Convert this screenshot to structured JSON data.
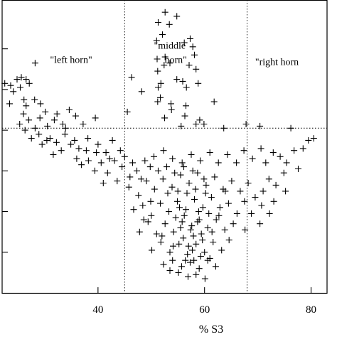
{
  "chart_data": {
    "type": "scatter",
    "marker": "+",
    "marker_color": "#000000",
    "title": "",
    "xlabel": "% S3",
    "ylabel": "",
    "xlim": [
      22,
      83
    ],
    "ylim": [
      -0.2,
      7.0
    ],
    "x_ticks": [
      40,
      60,
      80
    ],
    "x_tick_labels": [
      "40",
      "60",
      "80"
    ],
    "y_ticks": [
      0.8,
      1.8,
      2.8,
      3.8,
      4.8,
      5.8
    ],
    "y_tick_labels": [],
    "grid": false,
    "reference_lines": [
      {
        "orientation": "vertical",
        "value": 45,
        "style": "dotted"
      },
      {
        "orientation": "vertical",
        "value": 68,
        "style": "dotted"
      },
      {
        "orientation": "horizontal",
        "value": 3.85,
        "style": "dotted"
      }
    ],
    "annotations": [
      {
        "text": "\"left horn\"",
        "x": 31,
        "y": 5.45
      },
      {
        "text": "\"middle",
        "x": 50.5,
        "y": 5.8
      },
      {
        "text": "horn\"",
        "x": 52.5,
        "y": 5.45
      },
      {
        "text": "\"right horn",
        "x": 69.5,
        "y": 5.4
      }
    ],
    "series": [
      {
        "points": [
          [
            52.6,
            6.7
          ],
          [
            54.8,
            6.6
          ],
          [
            51.3,
            6.45
          ],
          [
            53.4,
            6.4
          ],
          [
            52.1,
            6.15
          ],
          [
            57.3,
            6.05
          ],
          [
            56.2,
            5.95
          ],
          [
            51.0,
            6.0
          ],
          [
            57.8,
            5.85
          ],
          [
            58.1,
            5.65
          ],
          [
            51.1,
            5.55
          ],
          [
            52.6,
            5.6
          ],
          [
            52.4,
            5.4
          ],
          [
            53.5,
            5.45
          ],
          [
            51.2,
            5.25
          ],
          [
            57.1,
            5.4
          ],
          [
            58.4,
            5.3
          ],
          [
            46.3,
            5.1
          ],
          [
            54.8,
            5.05
          ],
          [
            55.9,
            5.0
          ],
          [
            51.8,
            4.95
          ],
          [
            51.3,
            4.85
          ],
          [
            56.6,
            4.85
          ],
          [
            58.8,
            4.95
          ],
          [
            48.2,
            4.75
          ],
          [
            51.2,
            4.5
          ],
          [
            51.7,
            4.6
          ],
          [
            53.7,
            4.45
          ],
          [
            61.8,
            4.5
          ],
          [
            56.5,
            4.4
          ],
          [
            53.8,
            4.3
          ],
          [
            45.5,
            4.25
          ],
          [
            52.5,
            4.1
          ],
          [
            56.3,
            4.15
          ],
          [
            59.1,
            4.05
          ],
          [
            58.4,
            3.95
          ],
          [
            55.6,
            3.9
          ],
          [
            59.9,
            3.95
          ],
          [
            67.8,
            3.95
          ],
          [
            70.4,
            3.9
          ],
          [
            76.2,
            3.85
          ],
          [
            63.6,
            3.85
          ],
          [
            28.2,
            5.45
          ],
          [
            22.5,
            4.95
          ],
          [
            23.6,
            4.9
          ],
          [
            24.8,
            5.05
          ],
          [
            25.6,
            5.1
          ],
          [
            26.5,
            5.05
          ],
          [
            27.1,
            4.95
          ],
          [
            25.4,
            4.85
          ],
          [
            24.1,
            4.75
          ],
          [
            26.1,
            4.55
          ],
          [
            23.4,
            4.45
          ],
          [
            26.5,
            4.4
          ],
          [
            28.1,
            4.55
          ],
          [
            29.2,
            4.45
          ],
          [
            30.1,
            4.25
          ],
          [
            32.3,
            4.2
          ],
          [
            27.0,
            4.05
          ],
          [
            25.3,
            3.95
          ],
          [
            29.1,
            4.1
          ],
          [
            30.5,
            3.9
          ],
          [
            31.8,
            4.05
          ],
          [
            33.4,
            3.95
          ],
          [
            35.8,
            4.15
          ],
          [
            37.2,
            3.95
          ],
          [
            39.5,
            4.1
          ],
          [
            33.9,
            3.85
          ],
          [
            28.2,
            3.85
          ],
          [
            26.0,
            4.2
          ],
          [
            34.6,
            4.3
          ],
          [
            29.5,
            3.45
          ],
          [
            31.0,
            3.6
          ],
          [
            32.2,
            3.5
          ],
          [
            33.8,
            3.7
          ],
          [
            35.6,
            3.55
          ],
          [
            36.4,
            3.35
          ],
          [
            38.1,
            3.6
          ],
          [
            40.0,
            3.45
          ],
          [
            41.5,
            3.25
          ],
          [
            42.7,
            3.55
          ],
          [
            44.2,
            3.3
          ],
          [
            43.1,
            3.05
          ],
          [
            40.6,
            3.0
          ],
          [
            38.2,
            3.05
          ],
          [
            36.9,
            2.95
          ],
          [
            39.4,
            2.8
          ],
          [
            41.8,
            2.75
          ],
          [
            44.5,
            2.9
          ],
          [
            46.0,
            2.65
          ],
          [
            47.3,
            2.8
          ],
          [
            48.8,
            3.05
          ],
          [
            50.5,
            3.15
          ],
          [
            52.3,
            3.3
          ],
          [
            54.0,
            3.1
          ],
          [
            55.8,
            3.0
          ],
          [
            57.5,
            3.2
          ],
          [
            59.2,
            3.05
          ],
          [
            61.0,
            3.25
          ],
          [
            62.6,
            3.0
          ],
          [
            64.3,
            3.2
          ],
          [
            66.0,
            3.0
          ],
          [
            67.4,
            3.3
          ],
          [
            69.0,
            3.1
          ],
          [
            70.6,
            3.35
          ],
          [
            71.5,
            3.0
          ],
          [
            72.9,
            3.25
          ],
          [
            74.2,
            3.15
          ],
          [
            75.4,
            3.0
          ],
          [
            76.8,
            3.3
          ],
          [
            78.5,
            3.35
          ],
          [
            79.5,
            3.55
          ],
          [
            80.5,
            3.6
          ],
          [
            77.6,
            2.85
          ],
          [
            74.9,
            2.75
          ],
          [
            72.1,
            2.6
          ],
          [
            73.4,
            2.45
          ],
          [
            75.2,
            2.3
          ],
          [
            71.0,
            2.3
          ],
          [
            73.0,
            2.05
          ],
          [
            70.7,
            1.95
          ],
          [
            69.5,
            2.15
          ],
          [
            72.2,
            1.75
          ],
          [
            70.4,
            1.5
          ],
          [
            68.8,
            1.75
          ],
          [
            67.6,
            1.35
          ],
          [
            45.8,
            2.4
          ],
          [
            47.6,
            2.2
          ],
          [
            49.1,
            2.55
          ],
          [
            50.6,
            2.35
          ],
          [
            52.2,
            2.6
          ],
          [
            53.9,
            2.4
          ],
          [
            55.5,
            2.7
          ],
          [
            57.1,
            2.5
          ],
          [
            58.7,
            2.75
          ],
          [
            60.3,
            2.45
          ],
          [
            61.9,
            2.65
          ],
          [
            63.5,
            2.35
          ],
          [
            65.1,
            2.55
          ],
          [
            66.7,
            2.3
          ],
          [
            68.2,
            2.5
          ],
          [
            46.7,
            1.85
          ],
          [
            48.4,
            1.95
          ],
          [
            50.0,
            1.7
          ],
          [
            51.7,
            2.0
          ],
          [
            53.3,
            1.8
          ],
          [
            54.9,
            2.05
          ],
          [
            56.5,
            1.85
          ],
          [
            58.1,
            2.1
          ],
          [
            59.7,
            1.9
          ],
          [
            61.3,
            2.15
          ],
          [
            62.9,
            1.9
          ],
          [
            64.5,
            2.0
          ],
          [
            66.1,
            1.75
          ],
          [
            67.5,
            2.05
          ],
          [
            47.8,
            1.3
          ],
          [
            49.4,
            1.55
          ],
          [
            51.0,
            1.25
          ],
          [
            52.6,
            1.5
          ],
          [
            54.2,
            1.3
          ],
          [
            55.8,
            1.55
          ],
          [
            57.4,
            1.35
          ],
          [
            59.0,
            1.6
          ],
          [
            60.6,
            1.4
          ],
          [
            62.2,
            1.6
          ],
          [
            63.8,
            1.35
          ],
          [
            65.4,
            1.5
          ],
          [
            50.1,
            0.85
          ],
          [
            51.8,
            1.05
          ],
          [
            53.5,
            0.8
          ],
          [
            55.2,
            1.0
          ],
          [
            56.8,
            0.75
          ],
          [
            58.4,
            1.0
          ],
          [
            60.0,
            0.8
          ],
          [
            61.6,
            1.05
          ],
          [
            63.2,
            0.85
          ],
          [
            64.6,
            1.1
          ],
          [
            52.3,
            0.5
          ],
          [
            54.0,
            0.6
          ],
          [
            55.7,
            0.45
          ],
          [
            57.3,
            0.55
          ],
          [
            59.0,
            0.4
          ],
          [
            60.6,
            0.6
          ],
          [
            62.1,
            0.45
          ],
          [
            56.9,
            0.2
          ],
          [
            58.4,
            0.25
          ],
          [
            55.1,
            0.3
          ],
          [
            60.1,
            0.15
          ],
          [
            53.5,
            0.35
          ],
          [
            56.2,
            1.7
          ],
          [
            57.6,
            1.45
          ],
          [
            58.9,
            1.8
          ],
          [
            56.0,
            1.15
          ],
          [
            57.9,
            1.2
          ],
          [
            59.4,
            1.25
          ],
          [
            55.5,
            1.4
          ],
          [
            58.0,
            0.6
          ],
          [
            57.0,
            0.95
          ],
          [
            59.6,
            1.1
          ],
          [
            60.8,
            1.75
          ],
          [
            54.6,
            1.65
          ],
          [
            53.1,
            2.25
          ],
          [
            55.0,
            2.3
          ],
          [
            60.2,
            2.25
          ],
          [
            61.4,
            1.3
          ],
          [
            62.7,
            1.7
          ],
          [
            63.9,
            2.3
          ],
          [
            49.9,
            2.05
          ],
          [
            48.6,
            1.6
          ],
          [
            52.0,
            1.2
          ],
          [
            54.1,
            0.95
          ],
          [
            61.0,
            0.65
          ],
          [
            59.3,
            0.7
          ],
          [
            56.4,
            0.6
          ],
          [
            57.7,
            0.85
          ],
          [
            58.7,
            1.55
          ],
          [
            55.3,
            1.9
          ],
          [
            56.7,
            2.25
          ],
          [
            58.3,
            2.35
          ],
          [
            59.9,
            2.6
          ],
          [
            57.8,
            2.8
          ],
          [
            56.1,
            2.9
          ],
          [
            54.4,
            2.75
          ],
          [
            52.9,
            2.9
          ],
          [
            51.3,
            2.8
          ],
          [
            49.8,
            2.9
          ],
          [
            48.1,
            2.6
          ],
          [
            46.5,
            3.0
          ],
          [
            45.0,
            3.15
          ],
          [
            43.6,
            2.55
          ],
          [
            42.2,
            3.1
          ],
          [
            41.0,
            2.5
          ],
          [
            39.7,
            3.25
          ],
          [
            37.8,
            3.3
          ],
          [
            36.0,
            3.1
          ],
          [
            34.9,
            3.45
          ],
          [
            33.1,
            3.3
          ],
          [
            31.6,
            3.2
          ],
          [
            30.4,
            3.55
          ],
          [
            28.9,
            3.7
          ],
          [
            27.5,
            3.6
          ],
          [
            26.3,
            3.8
          ]
        ]
      }
    ]
  }
}
